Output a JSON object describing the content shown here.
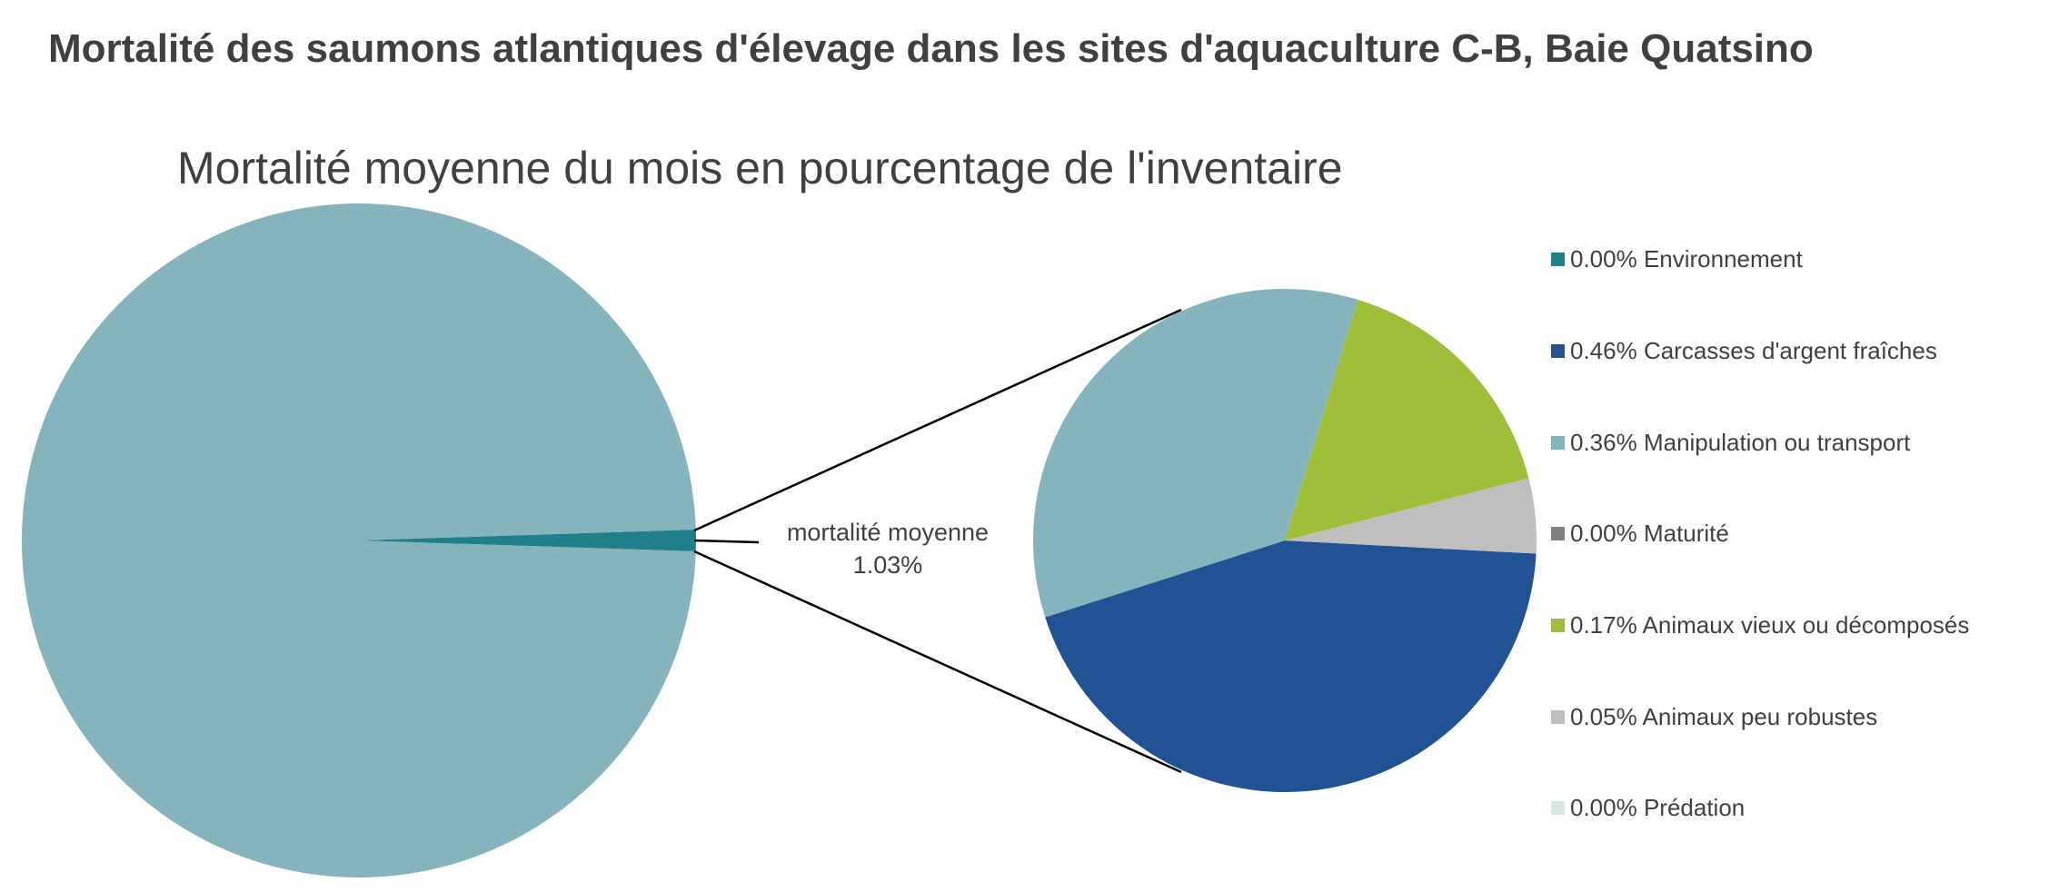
{
  "chart_data": {
    "type": "pie",
    "variant": "pie-of-pie",
    "title": "Mortalité des saumons atlantiques d'élevage dans les sites d'aquaculture C-B, Baie Quatsino",
    "subtitle": "Mortalité moyenne du mois en pourcentage de l'inventaire",
    "unit": "%",
    "main_pie": {
      "highlighted_slice": {
        "label": "mortalité moyenne",
        "value_label": "1.03%",
        "value": 1.03,
        "color": "#1f7f8a"
      },
      "remainder_color": "#86b4bd"
    },
    "secondary_pie": {
      "slices": [
        {
          "label": "Environnement",
          "value": 0.0,
          "value_label": "0.00%",
          "color": "#1f7f8a"
        },
        {
          "label": "Carcasses d'argent fraîches",
          "value": 0.46,
          "value_label": "0.46%",
          "color": "#215294"
        },
        {
          "label": "Manipulation ou transport",
          "value": 0.36,
          "value_label": "0.36%",
          "color": "#86b4bd"
        },
        {
          "label": "Maturité",
          "value": 0.0,
          "value_label": "0.00%",
          "color": "#808080"
        },
        {
          "label": "Animaux vieux ou décomposés",
          "value": 0.17,
          "value_label": "0.17%",
          "color": "#9fbf3b"
        },
        {
          "label": "Animaux peu robustes",
          "value": 0.05,
          "value_label": "0.05%",
          "color": "#bfbfbf"
        },
        {
          "label": "Prédation",
          "value": 0.0,
          "value_label": "0.00%",
          "color": "#d5e8e4"
        }
      ]
    },
    "legend_position": "right"
  }
}
